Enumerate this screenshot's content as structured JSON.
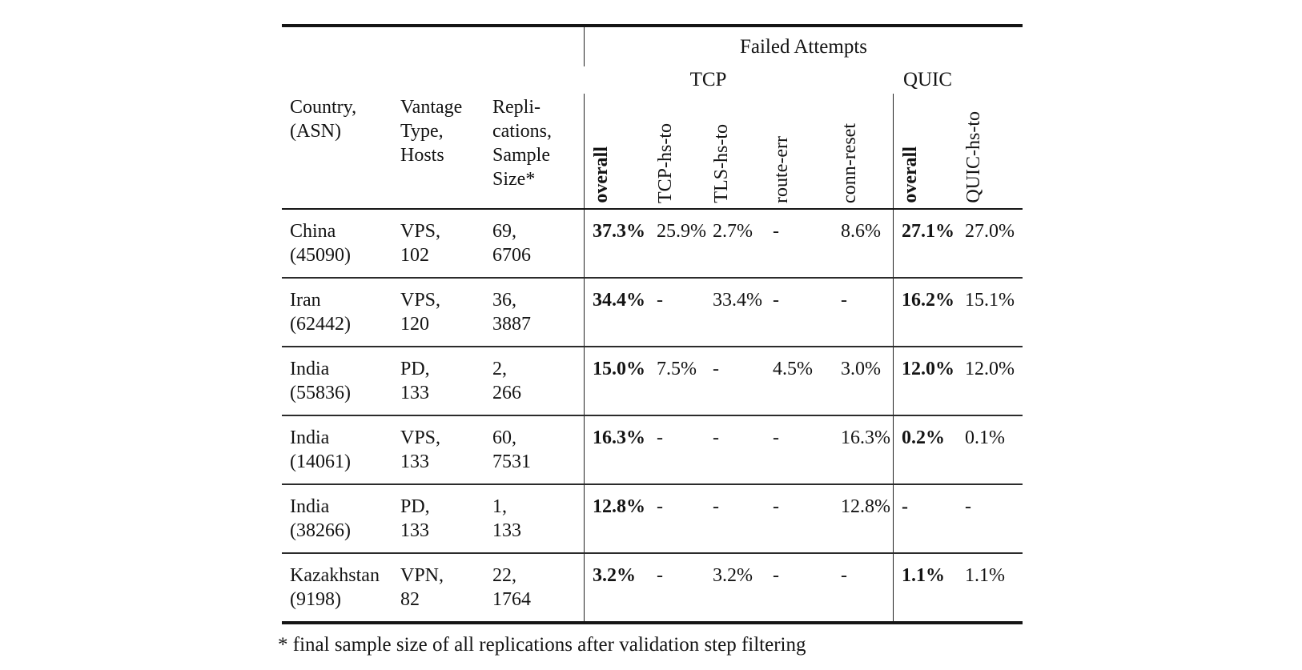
{
  "page": {
    "background": "#ffffff",
    "text_color": "#141414",
    "rule_color": "#151515"
  },
  "table": {
    "top_header": {
      "group_title": "Failed Attempts",
      "tcp": "TCP",
      "quic": "QUIC"
    },
    "col_headers": {
      "country": [
        "Country,",
        "(ASN)"
      ],
      "vantage": [
        "Vantage",
        "Type,",
        "Hosts"
      ],
      "replications": [
        "Repli-",
        "cations,",
        "Sample",
        "Size*"
      ],
      "rotated": {
        "tcp_overall": "overall",
        "tcp_hs_to": "TCP-hs-to",
        "tls_hs_to": "TLS-hs-to",
        "route_err": "route-err",
        "conn_reset": "conn-reset",
        "quic_overall": "overall",
        "quic_hs_to": "QUIC-hs-to"
      }
    },
    "rows": [
      {
        "country": "China",
        "asn": "(45090)",
        "vantage": "VPS,",
        "hosts": "102",
        "replications": "69,",
        "sample": "6706",
        "tcp_overall": "37.3%",
        "tcp_hs_to": "25.9%",
        "tls_hs_to": "2.7%",
        "route_err": "-",
        "conn_reset": "8.6%",
        "quic_overall": "27.1%",
        "quic_hs_to": "27.0%"
      },
      {
        "country": "Iran",
        "asn": "(62442)",
        "vantage": "VPS,",
        "hosts": "120",
        "replications": "36,",
        "sample": "3887",
        "tcp_overall": "34.4%",
        "tcp_hs_to": "-",
        "tls_hs_to": "33.4%",
        "route_err": "-",
        "conn_reset": "-",
        "quic_overall": "16.2%",
        "quic_hs_to": "15.1%"
      },
      {
        "country": "India",
        "asn": "(55836)",
        "vantage": "PD,",
        "hosts": "133",
        "replications": "2,",
        "sample": "266",
        "tcp_overall": "15.0%",
        "tcp_hs_to": "7.5%",
        "tls_hs_to": "-",
        "route_err": "4.5%",
        "conn_reset": "3.0%",
        "quic_overall": "12.0%",
        "quic_hs_to": "12.0%"
      },
      {
        "country": "India",
        "asn": "(14061)",
        "vantage": "VPS,",
        "hosts": "133",
        "replications": "60,",
        "sample": "7531",
        "tcp_overall": "16.3%",
        "tcp_hs_to": "-",
        "tls_hs_to": "-",
        "route_err": "-",
        "conn_reset": "16.3%",
        "quic_overall": "0.2%",
        "quic_hs_to": "0.1%"
      },
      {
        "country": "India",
        "asn": "(38266)",
        "vantage": "PD,",
        "hosts": "133",
        "replications": "1,",
        "sample": "133",
        "tcp_overall": "12.8%",
        "tcp_hs_to": "-",
        "tls_hs_to": "-",
        "route_err": "-",
        "conn_reset": "12.8%",
        "quic_overall": "-",
        "quic_hs_to": "-"
      },
      {
        "country": "Kazakhstan",
        "asn": "(9198)",
        "vantage": "VPN,",
        "hosts": "82",
        "replications": "22,",
        "sample": "1764",
        "tcp_overall": "3.2%",
        "tcp_hs_to": "-",
        "tls_hs_to": "3.2%",
        "route_err": "-",
        "conn_reset": "-",
        "quic_overall": "1.1%",
        "quic_hs_to": "1.1%"
      }
    ],
    "footnote": "* final sample size of all replications after validation step filtering"
  }
}
